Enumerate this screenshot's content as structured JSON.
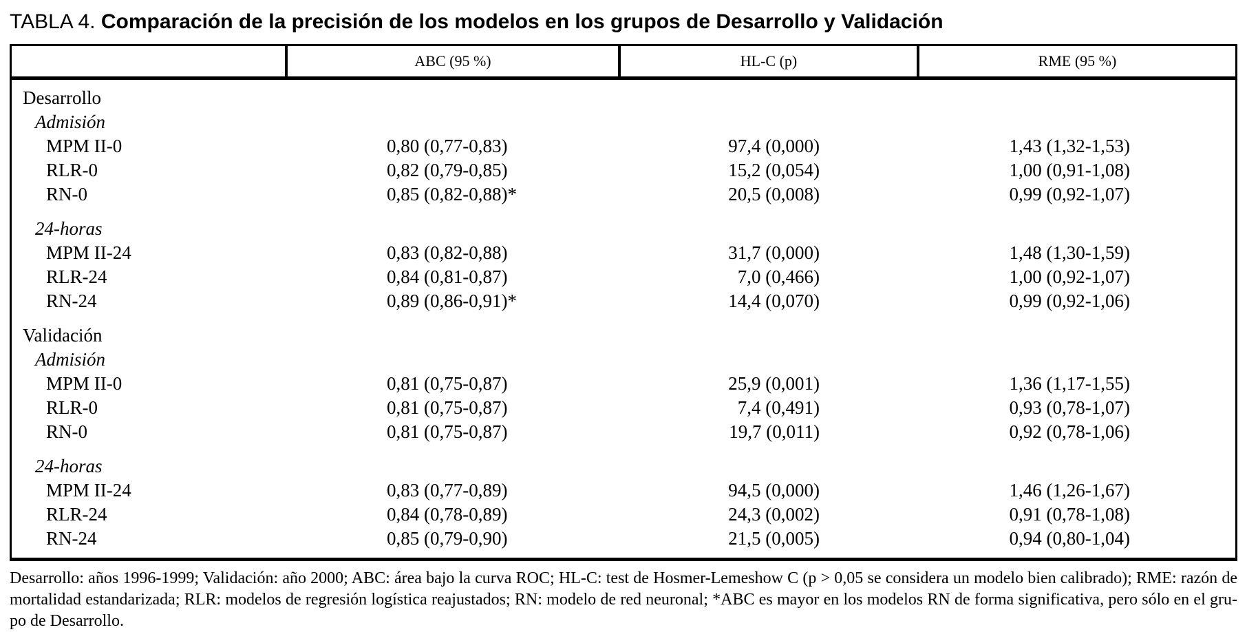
{
  "page": {
    "background": "#ffffff",
    "text_color": "#000000",
    "border_color": "#000000"
  },
  "title": {
    "label": "TABLA 4.",
    "main": "Comparación de la precisión de los modelos en los grupos de Desarrollo y Validación"
  },
  "table": {
    "header": {
      "col0": "",
      "col1": "ABC (95 %)",
      "col2": "HL-C (p)",
      "col3": "RME (95 %)"
    },
    "rows": [
      {
        "type": "section",
        "label": "Desarrollo"
      },
      {
        "type": "subsection",
        "label": "Admisión"
      },
      {
        "type": "data",
        "label": "MPM II-0",
        "abc": "0,80 (0,77-0,83)",
        "hlc": "97,4 (0,000)",
        "rme": "1,43 (1,32-1,53)"
      },
      {
        "type": "data",
        "label": "RLR-0",
        "abc": "0,82 (0,79-0,85)",
        "hlc": "15,2 (0,054)",
        "rme": "1,00 (0,91-1,08)"
      },
      {
        "type": "data",
        "label": "RN-0",
        "abc": "0,85 (0,82-0,88)*",
        "hlc": "20,5 (0,008)",
        "rme": "0,99 (0,92-1,07)"
      },
      {
        "type": "subsection",
        "label": "24-horas",
        "gap": true
      },
      {
        "type": "data",
        "label": "MPM II-24",
        "abc": "0,83 (0,82-0,88)",
        "hlc": "31,7 (0,000)",
        "rme": "1,48 (1,30-1,59)"
      },
      {
        "type": "data",
        "label": "RLR-24",
        "abc": "0,84 (0,81-0,87)",
        "hlc": "7,0 (0,466)",
        "rme": "1,00 (0,92-1,07)"
      },
      {
        "type": "data",
        "label": "RN-24",
        "abc": "0,89 (0,86-0,91)*",
        "hlc": "14,4 (0,070)",
        "rme": "0,99 (0,92-1,06)"
      },
      {
        "type": "section",
        "label": "Validación",
        "gap": true
      },
      {
        "type": "subsection",
        "label": "Admisión"
      },
      {
        "type": "data",
        "label": "MPM II-0",
        "abc": "0,81 (0,75-0,87)",
        "hlc": "25,9 (0,001)",
        "rme": "1,36 (1,17-1,55)"
      },
      {
        "type": "data",
        "label": "RLR-0",
        "abc": "0,81 (0,75-0,87)",
        "hlc": "7,4 (0,491)",
        "rme": "0,93 (0,78-1,07)"
      },
      {
        "type": "data",
        "label": "RN-0",
        "abc": "0,81 (0,75-0,87)",
        "hlc": "19,7 (0,011)",
        "rme": "0,92 (0,78-1,06)"
      },
      {
        "type": "subsection",
        "label": "24-horas",
        "gap": true
      },
      {
        "type": "data",
        "label": "MPM II-24",
        "abc": "0,83 (0,77-0,89)",
        "hlc": "94,5 (0,000)",
        "rme": "1,46 (1,26-1,67)"
      },
      {
        "type": "data",
        "label": "RLR-24",
        "abc": "0,84 (0,78-0,89)",
        "hlc": "24,3 (0,002)",
        "rme": "0,91 (0,78-1,08)"
      },
      {
        "type": "data",
        "label": "RN-24",
        "abc": "0,85 (0,79-0,90)",
        "hlc": "21,5 (0,005)",
        "rme": "0,94 (0,80-1,04)"
      }
    ]
  },
  "footnote": {
    "lines": [
      "Desarrollo: años 1996-1999; Validación: año 2000; ABC: área bajo la curva ROC; HL-C: test de Hosmer-Lemeshow C (p > 0,05 se considera un modelo bien calibrado); RME: razón de",
      "mortalidad estandarizada; RLR: modelos de regresión logística reajustados; RN: modelo de red neuronal; *ABC es mayor en los modelos RN de forma significativa, pero sólo en el gru-",
      "po de Desarrollo."
    ]
  }
}
